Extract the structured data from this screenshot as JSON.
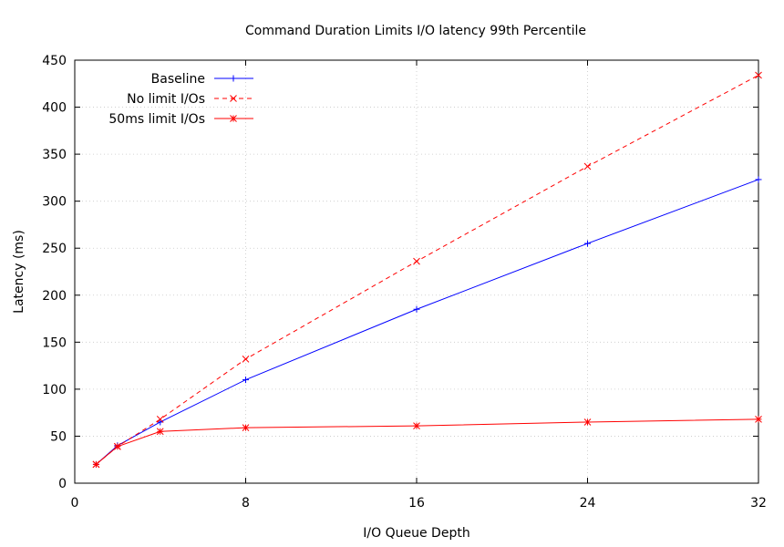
{
  "chart_data": {
    "type": "line",
    "title": "Command Duration Limits I/O latency 99th Percentile",
    "xlabel": "I/O Queue Depth",
    "ylabel": "Latency (ms)",
    "xlim": [
      0,
      32
    ],
    "ylim": [
      0,
      450
    ],
    "xticks": [
      0,
      8,
      16,
      24,
      32
    ],
    "yticks": [
      0,
      50,
      100,
      150,
      200,
      250,
      300,
      350,
      400,
      450
    ],
    "grid": true,
    "legend_position": "top-left",
    "x": [
      1,
      2,
      4,
      8,
      16,
      24,
      32
    ],
    "series": [
      {
        "name": "Baseline",
        "values": [
          20,
          40,
          65,
          110,
          185,
          255,
          323
        ],
        "color": "#0000ff",
        "dash": "solid",
        "marker": "plus"
      },
      {
        "name": "No limit I/Os",
        "values": [
          20,
          39,
          68,
          132,
          236,
          337,
          434
        ],
        "color": "#ff0000",
        "dash": "dashed",
        "marker": "x"
      },
      {
        "name": "50ms limit I/Os",
        "values": [
          20,
          39,
          55,
          59,
          61,
          65,
          68
        ],
        "color": "#ff0000",
        "dash": "solid",
        "marker": "star"
      }
    ]
  }
}
